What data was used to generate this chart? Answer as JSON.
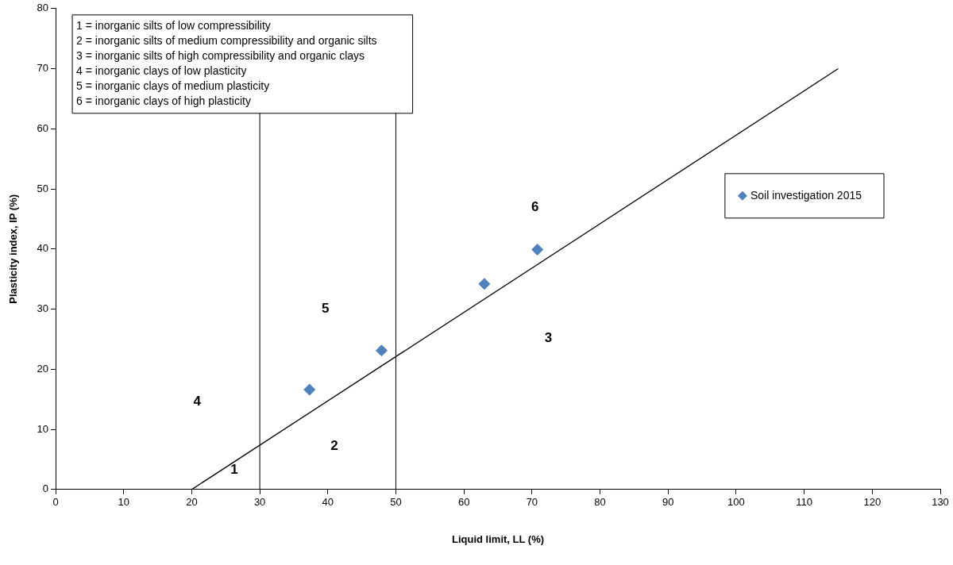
{
  "chart_data": {
    "type": "scatter",
    "xlabel": "Liquid limit, LL (%)",
    "ylabel": "Plasticity index, IP (%)",
    "xlim": [
      0,
      130
    ],
    "xticks": [
      0,
      10,
      20,
      30,
      40,
      50,
      60,
      70,
      80,
      90,
      100,
      110,
      120,
      130
    ],
    "ylim": [
      0,
      80
    ],
    "yticks": [
      0,
      10,
      20,
      30,
      40,
      50,
      60,
      70,
      80
    ],
    "grid": false,
    "legend": "right",
    "marker": "diamond",
    "series": [
      {
        "name": "Soil investigation 2015",
        "color": "#4f81bd",
        "x": [
          37.3,
          47.9,
          63.0,
          70.8
        ],
        "values": [
          16.6,
          23.1,
          34.2,
          39.9
        ]
      },
      {
        "type": "line",
        "color": "#000000",
        "x": [
          20,
          115
        ],
        "values": [
          0,
          70
        ],
        "marker": "none"
      }
    ],
    "ref_lines": [
      {
        "axis": "x",
        "value": 30,
        "color": "#000000"
      },
      {
        "axis": "x",
        "value": 50,
        "color": "#000000"
      }
    ],
    "annotations": [
      "1 = inorganic silts of low compressibility",
      "2 = inorganic silts of medium compressibility and organic silts",
      "3 = inorganic silts of high compressibility and organic clays",
      "4 = inorganic clays of low plasticity",
      "5 = inorganic clays of medium plasticity",
      "6 = inorganic clays of high plasticity",
      "1",
      "2",
      "3",
      "4",
      "5",
      "6"
    ]
  }
}
